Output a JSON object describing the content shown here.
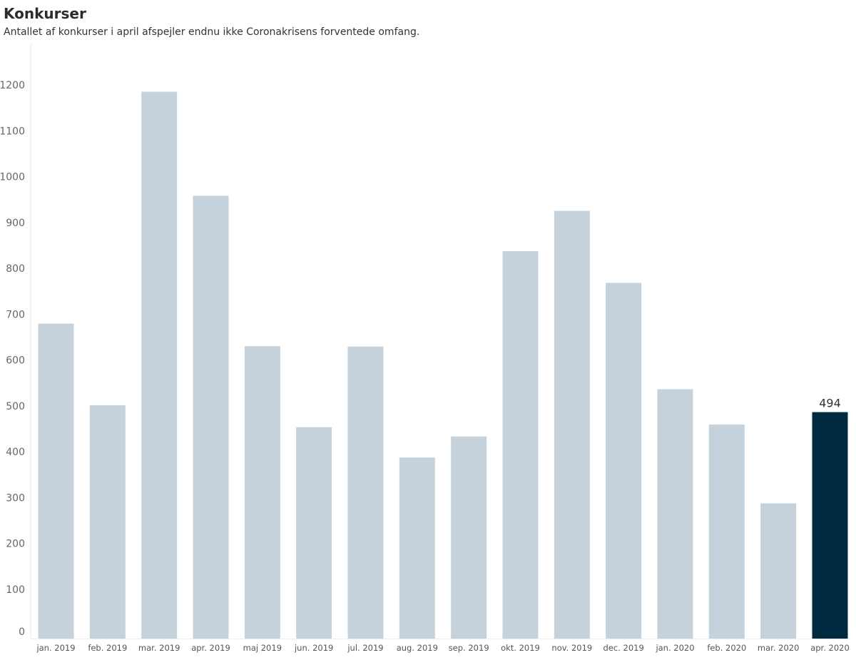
{
  "chart_data": {
    "type": "bar",
    "title": "Konkurser",
    "subtitle": "Antallet af konkurser i april afspejler endnu ikke Coronakrisens forventede omfang.",
    "xlabel": "",
    "ylabel": "",
    "categories": [
      "jan. 2019",
      "feb. 2019",
      "mar. 2019",
      "apr. 2019",
      "maj 2019",
      "jun. 2019",
      "jul. 2019",
      "aug. 2019",
      "sep. 2019",
      "okt. 2019",
      "nov. 2019",
      "dec. 2019",
      "jan. 2020",
      "feb. 2020",
      "mar. 2020",
      "apr. 2020"
    ],
    "values": [
      687,
      509,
      1193,
      966,
      638,
      461,
      637,
      395,
      441,
      845,
      933,
      776,
      544,
      467,
      295,
      494
    ],
    "ylim": [
      0,
      1200
    ],
    "yticks": [
      "0",
      "100",
      "200",
      "300",
      "400",
      "500",
      "600",
      "700",
      "800",
      "900",
      "1000",
      "1100",
      "1200"
    ],
    "grid": false,
    "highlight_index": 15,
    "data_labels": [
      {
        "index": 15,
        "text": "494"
      }
    ],
    "colors": {
      "bar": "#c5d2dc",
      "highlight": "#002a40",
      "axis": "#e6e6e6"
    }
  }
}
